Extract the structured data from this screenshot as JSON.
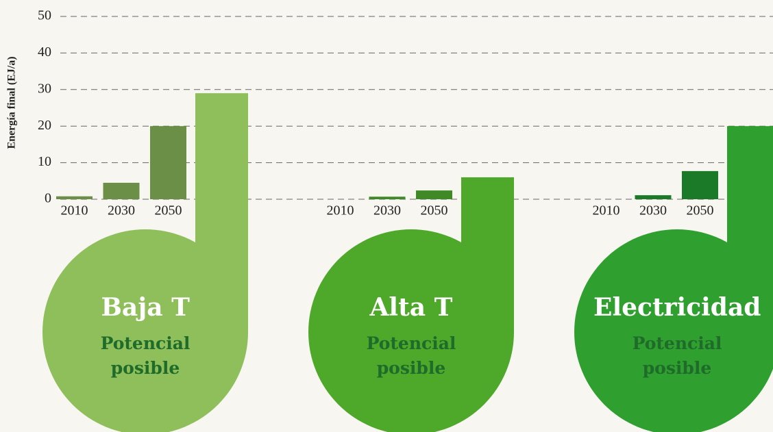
{
  "chart_data": {
    "type": "bar",
    "y_label": "Energía final (EJ/a)",
    "ylim": [
      0,
      50
    ],
    "yticks": [
      0,
      10,
      20,
      30,
      40,
      50
    ],
    "grid": true,
    "groups": [
      {
        "name": "Baja T",
        "categories": [
          "2010",
          "2030",
          "2050"
        ],
        "values": [
          0.8,
          4.5,
          20
        ],
        "color": "#6b8f47",
        "potential_label": "Potencial posible",
        "potential": 29,
        "potential_color": "#8fbf5a"
      },
      {
        "name": "Alta T",
        "categories": [
          "2010",
          "2030",
          "2050"
        ],
        "values": [
          0,
          0.7,
          2.4
        ],
        "color": "#3f8a26",
        "potential_label": "Potencial posible",
        "potential": 6,
        "potential_color": "#4ea82a"
      },
      {
        "name": "Electricidad",
        "categories": [
          "2010",
          "2030",
          "2050"
        ],
        "values": [
          0,
          1.1,
          7.7
        ],
        "color": "#1a7a28",
        "potential_label": "Potencial posible",
        "potential": 20,
        "potential_color": "#2fa02f"
      }
    ]
  }
}
